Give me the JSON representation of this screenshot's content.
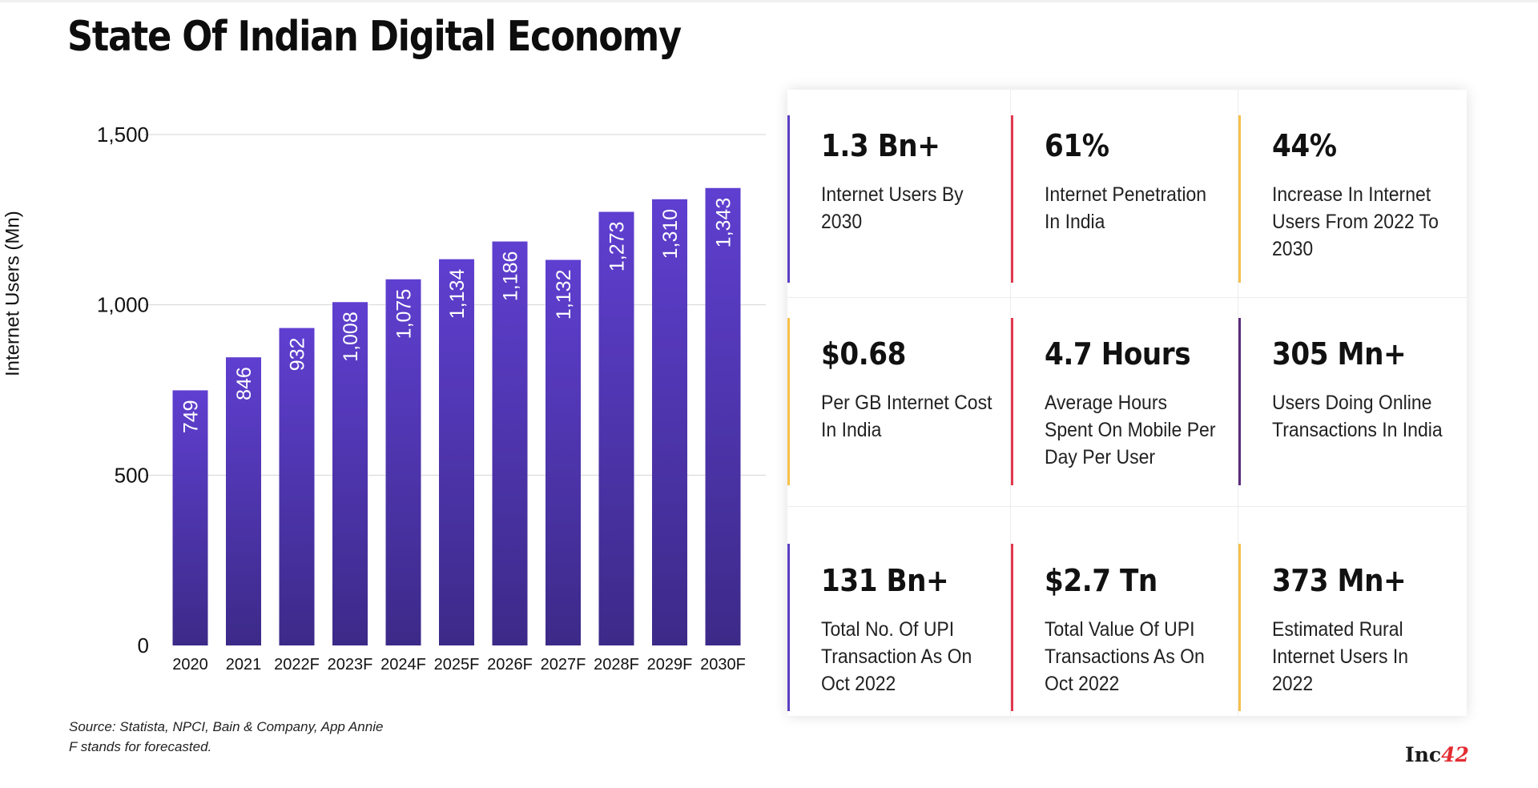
{
  "title": "State Of Indian Digital Economy",
  "chart_data": {
    "type": "bar",
    "categories": [
      "2020",
      "2021",
      "2022F",
      "2023F",
      "2024F",
      "2025F",
      "2026F",
      "2027F",
      "2028F",
      "2029F",
      "2030F"
    ],
    "values": [
      749,
      846,
      932,
      1008,
      1075,
      1134,
      1186,
      1132,
      1273,
      1310,
      1343
    ],
    "data_labels": [
      "749",
      "846",
      "932",
      "1,008",
      "1,075",
      "1,134",
      "1,186",
      "1,132",
      "1,273",
      "1,310",
      "1,343"
    ],
    "ylabel": "Internet Users (Mn)",
    "yticks": [
      0,
      500,
      1000,
      1500
    ],
    "ytick_labels": [
      "0",
      "500",
      "1,000",
      "1,500"
    ],
    "ylim": [
      0,
      1500
    ],
    "grid": true,
    "bar_color_top": "#5f3fd0",
    "bar_color_bottom": "#3c2a88"
  },
  "source": {
    "line1": "Source: Statista, NPCI, Bain & Company, App Annie",
    "line2": "F stands for forecasted."
  },
  "stats": [
    {
      "value": "1.3 Bn+",
      "label": "Internet Users By 2030",
      "accent": "#5b3fc4"
    },
    {
      "value": "61%",
      "label": "Internet Penetration In India",
      "accent": "#e0394f"
    },
    {
      "value": "44%",
      "label": "Increase In Internet Users From 2022 To 2030",
      "accent": "#f5c04a"
    },
    {
      "value": "$0.68",
      "label": "Per GB Internet Cost In India",
      "accent": "#f5c04a"
    },
    {
      "value": "4.7 Hours",
      "label": "Average Hours Spent On Mobile Per Day Per User",
      "accent": "#e0394f"
    },
    {
      "value": "305 Mn+",
      "label": "Users Doing Online Transactions In India",
      "accent": "#5b2c7c"
    },
    {
      "value": "131 Bn+",
      "label": "Total No. Of UPI Transaction As On Oct 2022",
      "accent": "#5b3fc4"
    },
    {
      "value": "$2.7 Tn",
      "label": "Total Value Of UPI Transactions As On Oct 2022",
      "accent": "#e0394f"
    },
    {
      "value": "373 Mn+",
      "label": "Estimated Rural Internet Users In 2022",
      "accent": "#f5c04a"
    }
  ],
  "brand": {
    "text": "Inc",
    "number": "42"
  }
}
